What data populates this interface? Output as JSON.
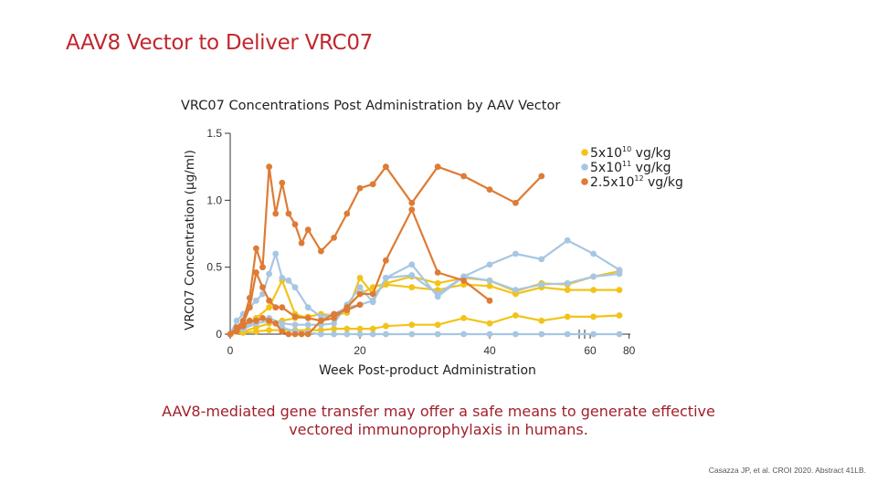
{
  "slide": {
    "title": "AAV8 Vector to Deliver VRC07",
    "conclusion": "AAV8-mediated gene transfer may offer a safe means to generate effective vectored immunoprophylaxis in humans.",
    "citation": "Casazza JP, et al. CROI 2020. Abstract 41LB."
  },
  "chart_data": {
    "type": "line",
    "title": "VRC07 Concentrations Post Administration by AAV Vector",
    "xlabel": "Week Post-product Administration",
    "ylabel": "VRC07 Concentration (µg/ml)",
    "ylim": [
      0,
      1.5
    ],
    "y_ticks": [
      "0",
      "0.5",
      "1.0",
      "1.5"
    ],
    "x_ticks": [
      "0",
      "20",
      "40",
      "60",
      "80"
    ],
    "x_axis_note": "axis break between 60 and 80",
    "legend": [
      {
        "base": "5x10",
        "exp": "10",
        "unit": " vg/kg",
        "color": "#f2c318"
      },
      {
        "base": "5x10",
        "exp": "11",
        "unit": " vg/kg",
        "color": "#a7c6e2"
      },
      {
        "base": "2.5x10",
        "exp": "12",
        "unit": " vg/kg",
        "color": "#de7b35"
      }
    ],
    "series": [
      {
        "name": "5x10^10 p1",
        "color": "#f2c318",
        "x": [
          0,
          2,
          4,
          6,
          8,
          10,
          12,
          14,
          16,
          18,
          20,
          22,
          24,
          28,
          32,
          36,
          40,
          44,
          48,
          52,
          56,
          60
        ],
        "y": [
          0,
          0.02,
          0.05,
          0.08,
          0.1,
          0.12,
          0.13,
          0.15,
          0.14,
          0.16,
          0.42,
          0.3,
          0.37,
          0.35,
          0.33,
          0.37,
          0.36,
          0.3,
          0.35,
          0.33,
          0.33,
          0.33
        ]
      },
      {
        "name": "5x10^10 p2",
        "color": "#f2c318",
        "x": [
          0,
          2,
          4,
          6,
          8,
          10,
          12,
          14,
          16,
          18,
          20,
          22,
          24,
          28,
          32,
          36,
          40,
          44,
          48,
          52,
          56,
          60
        ],
        "y": [
          0,
          0.05,
          0.12,
          0.2,
          0.4,
          0.15,
          0.12,
          0.1,
          0.12,
          0.2,
          0.3,
          0.35,
          0.38,
          0.43,
          0.38,
          0.42,
          0.4,
          0.32,
          0.38,
          0.37,
          0.43,
          0.47
        ]
      },
      {
        "name": "5x10^10 p3",
        "color": "#f2c318",
        "x": [
          0,
          2,
          4,
          6,
          8,
          10,
          12,
          14,
          16,
          18,
          20,
          22,
          24,
          28,
          32,
          36,
          40,
          44,
          48,
          52,
          56,
          60
        ],
        "y": [
          0,
          0.01,
          0.02,
          0.03,
          0.03,
          0.03,
          0.03,
          0.03,
          0.04,
          0.04,
          0.04,
          0.04,
          0.06,
          0.07,
          0.07,
          0.12,
          0.08,
          0.14,
          0.1,
          0.13,
          0.13,
          0.14
        ]
      },
      {
        "name": "5x10^11 p1",
        "color": "#a7c6e2",
        "x": [
          0,
          1,
          2,
          3,
          4,
          5,
          6,
          7,
          8,
          9,
          10,
          12,
          14,
          16,
          18,
          20,
          22,
          24,
          28,
          32,
          36,
          40,
          44,
          48,
          52,
          56,
          60
        ],
        "y": [
          0,
          0.1,
          0.15,
          0.2,
          0.25,
          0.3,
          0.45,
          0.6,
          0.42,
          0.4,
          0.35,
          0.2,
          0.13,
          0.15,
          0.2,
          0.22,
          0.25,
          0.42,
          0.52,
          0.28,
          0.43,
          0.52,
          0.6,
          0.56,
          0.7,
          0.6,
          0.48
        ]
      },
      {
        "name": "5x10^11 p2",
        "color": "#a7c6e2",
        "x": [
          0,
          2,
          4,
          6,
          8,
          10,
          12,
          14,
          16,
          18,
          20,
          22,
          24,
          28,
          32,
          36,
          40,
          44,
          48,
          52,
          56,
          60
        ],
        "y": [
          0,
          0.05,
          0.1,
          0.12,
          0.08,
          0.07,
          0.07,
          0.07,
          0.08,
          0.22,
          0.35,
          0.24,
          0.42,
          0.44,
          0.3,
          0.43,
          0.4,
          0.33,
          0.37,
          0.38,
          0.43,
          0.45
        ]
      },
      {
        "name": "5x10^11 p3",
        "color": "#a7c6e2",
        "x": [
          0,
          2,
          4,
          6,
          8,
          10,
          12,
          14,
          16,
          18,
          20,
          22,
          24,
          28,
          32,
          36,
          40,
          44,
          48,
          52,
          56,
          60
        ],
        "y": [
          0,
          0.04,
          0.08,
          0.1,
          0.05,
          0.02,
          0.01,
          0.0,
          0.0,
          0.0,
          0.0,
          0.0,
          0.0,
          0.0,
          0.0,
          0.0,
          0.0,
          0.0,
          0.0,
          0.0,
          0.0,
          0.0
        ]
      },
      {
        "name": "2.5x10^12 p1",
        "color": "#de7b35",
        "x": [
          0,
          1,
          2,
          3,
          4,
          5,
          6,
          7,
          8,
          9,
          10,
          11,
          12,
          14,
          16,
          18,
          20,
          22,
          24,
          28,
          32,
          36,
          40,
          44,
          48
        ],
        "y": [
          0,
          0.05,
          0.1,
          0.27,
          0.64,
          0.5,
          1.25,
          0.9,
          1.13,
          0.9,
          0.82,
          0.68,
          0.78,
          0.62,
          0.72,
          0.9,
          1.09,
          1.12,
          1.25,
          0.98,
          1.25,
          1.18,
          1.08,
          0.98,
          1.18
        ]
      },
      {
        "name": "2.5x10^12 p2",
        "color": "#de7b35",
        "x": [
          0,
          1,
          2,
          3,
          4,
          5,
          6,
          7,
          8,
          10,
          12,
          14,
          16,
          18,
          20,
          22,
          24,
          28,
          32,
          36,
          40
        ],
        "y": [
          0,
          0.03,
          0.08,
          0.2,
          0.46,
          0.35,
          0.25,
          0.2,
          0.2,
          0.13,
          0.12,
          0.1,
          0.12,
          0.2,
          0.3,
          0.3,
          0.55,
          0.93,
          0.46,
          0.4,
          0.25
        ]
      },
      {
        "name": "2.5x10^12 p3",
        "color": "#de7b35",
        "x": [
          0,
          1,
          2,
          3,
          4,
          5,
          6,
          7,
          8,
          9,
          10,
          11,
          12,
          14,
          16,
          18,
          20
        ],
        "y": [
          0,
          0.02,
          0.06,
          0.1,
          0.1,
          0.12,
          0.1,
          0.08,
          0.02,
          0.0,
          0.0,
          0.0,
          0.0,
          0.1,
          0.15,
          0.18,
          0.22
        ]
      }
    ]
  }
}
